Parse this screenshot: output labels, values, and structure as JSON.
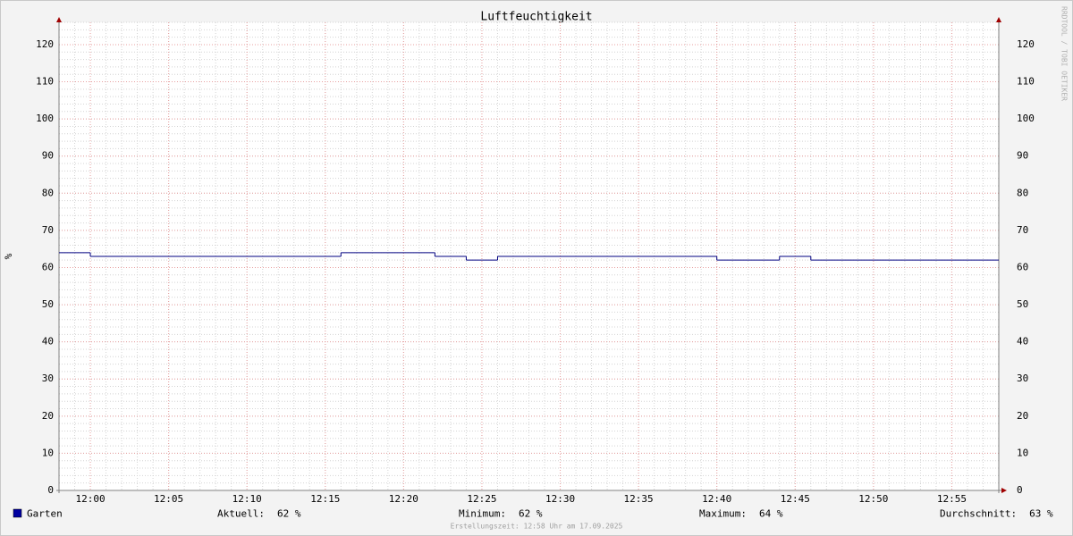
{
  "chart_data": {
    "type": "step",
    "title": "Luftfeuchtigkeit",
    "y_label": "%",
    "watermark": "RRDTOOL / TOBI OETIKER",
    "x": [
      718,
      720,
      736,
      742,
      744,
      746,
      760,
      764,
      766,
      778
    ],
    "series": [
      {
        "name": "Garten",
        "color": "#000080",
        "legend_color": "#0000a0",
        "values": [
          64,
          63,
          64,
          63,
          62,
          63,
          62,
          63,
          62,
          62
        ]
      }
    ],
    "xlim": [
      718,
      778
    ],
    "xticks": [
      {
        "value": 720,
        "label": "12:00"
      },
      {
        "value": 725,
        "label": "12:05"
      },
      {
        "value": 730,
        "label": "12:10"
      },
      {
        "value": 735,
        "label": "12:15"
      },
      {
        "value": 740,
        "label": "12:20"
      },
      {
        "value": 745,
        "label": "12:25"
      },
      {
        "value": 750,
        "label": "12:30"
      },
      {
        "value": 755,
        "label": "12:35"
      },
      {
        "value": 760,
        "label": "12:40"
      },
      {
        "value": 765,
        "label": "12:45"
      },
      {
        "value": 770,
        "label": "12:50"
      },
      {
        "value": 775,
        "label": "12:55"
      }
    ],
    "ylim": [
      0,
      126
    ],
    "yticks": [
      0,
      10,
      20,
      30,
      40,
      50,
      60,
      70,
      80,
      90,
      100,
      110,
      120
    ],
    "grid": true,
    "minor_grid": true,
    "stats": [
      {
        "label": "Aktuell:",
        "value": "62 %"
      },
      {
        "label": "Minimum:",
        "value": "62 %"
      },
      {
        "label": "Maximum:",
        "value": "64 %"
      },
      {
        "label": "Durchschnitt:",
        "value": "63 %"
      }
    ],
    "footer": "Erstellungszeit: 12:58 Uhr am 17.09.2025"
  }
}
